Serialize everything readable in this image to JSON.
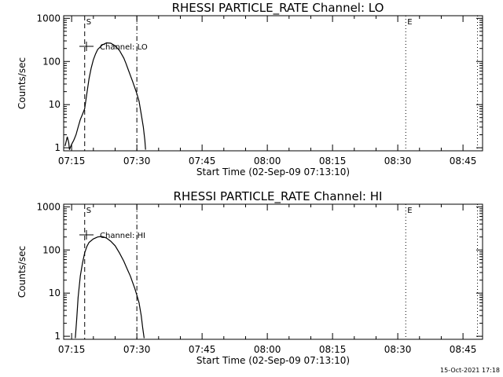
{
  "chart_data": [
    {
      "type": "line",
      "title": "RHESSI PARTICLE_RATE Channel: LO",
      "xlabel": "Start Time (02-Sep-09 07:13:10)",
      "ylabel": "Counts/sec",
      "y_scale": "log",
      "ylim": [
        0.85,
        1150
      ],
      "xlim": [
        "07:13:10",
        "08:49:30"
      ],
      "x_ticks": [
        "07:15",
        "07:30",
        "07:45",
        "08:00",
        "08:15",
        "08:30",
        "08:45"
      ],
      "y_ticks": [
        "1",
        "10",
        "100",
        "1000"
      ],
      "legend": {
        "position": "top-left",
        "entries": [
          "Channel: LO"
        ]
      },
      "markers": [
        {
          "label": "S",
          "time": "07:18:00",
          "style": "dashed"
        },
        {
          "label": "",
          "time": "07:30:00",
          "style": "dashdot"
        },
        {
          "label": "E",
          "time": "08:31:50",
          "style": "dotted"
        },
        {
          "label": "",
          "time": "08:48:20",
          "style": "dotted"
        }
      ],
      "series": [
        {
          "name": "Channel: LO",
          "x": [
            "07:13:30",
            "07:14:00",
            "07:14:20",
            "07:14:30",
            "07:14:40",
            "07:15:00",
            "07:15:30",
            "07:16:00",
            "07:16:30",
            "07:17:00",
            "07:17:30",
            "07:18:00",
            "07:18:30",
            "07:19:00",
            "07:19:30",
            "07:20:00",
            "07:20:30",
            "07:21:00",
            "07:22:00",
            "07:23:00",
            "07:24:00",
            "07:25:00",
            "07:26:00",
            "07:27:00",
            "07:27:30",
            "07:28:00",
            "07:28:30",
            "07:29:00",
            "07:29:30",
            "07:30:00",
            "07:30:30",
            "07:31:00",
            "07:31:30",
            "07:31:50",
            "07:32:00"
          ],
          "y": [
            1.1,
            1.8,
            1.3,
            0.9,
            1.0,
            1.2,
            1.5,
            2.0,
            3.0,
            4.5,
            6.0,
            8.0,
            18,
            40,
            70,
            110,
            150,
            190,
            240,
            270,
            265,
            230,
            180,
            120,
            90,
            65,
            48,
            35,
            25,
            18,
            12,
            6,
            3,
            1.5,
            0.9
          ]
        }
      ]
    },
    {
      "type": "line",
      "title": "RHESSI PARTICLE_RATE Channel: HI",
      "xlabel": "Start Time (02-Sep-09 07:13:10)",
      "ylabel": "Counts/sec",
      "y_scale": "log",
      "ylim": [
        0.85,
        1150
      ],
      "xlim": [
        "07:13:10",
        "08:49:30"
      ],
      "x_ticks": [
        "07:15",
        "07:30",
        "07:45",
        "08:00",
        "08:15",
        "08:30",
        "08:45"
      ],
      "y_ticks": [
        "1",
        "10",
        "100",
        "1000"
      ],
      "legend": {
        "position": "top-left",
        "entries": [
          "Channel: HI"
        ]
      },
      "markers": [
        {
          "label": "S",
          "time": "07:18:00",
          "style": "dashed"
        },
        {
          "label": "",
          "time": "07:30:00",
          "style": "dashdot"
        },
        {
          "label": "E",
          "time": "08:31:50",
          "style": "dotted"
        },
        {
          "label": "",
          "time": "08:48:20",
          "style": "dotted"
        }
      ],
      "series": [
        {
          "name": "Channel: HI",
          "x": [
            "07:15:50",
            "07:16:10",
            "07:16:30",
            "07:17:00",
            "07:17:30",
            "07:18:00",
            "07:18:30",
            "07:19:00",
            "07:20:00",
            "07:21:00",
            "07:22:00",
            "07:23:00",
            "07:24:00",
            "07:25:00",
            "07:26:00",
            "07:27:00",
            "07:27:30",
            "07:28:00",
            "07:28:30",
            "07:29:00",
            "07:29:30",
            "07:30:00",
            "07:30:30",
            "07:31:00",
            "07:31:20",
            "07:31:40"
          ],
          "y": [
            0.9,
            2.5,
            8,
            25,
            50,
            85,
            120,
            150,
            180,
            200,
            205,
            190,
            160,
            125,
            85,
            55,
            42,
            32,
            25,
            18,
            13,
            9,
            6,
            3,
            1.6,
            0.9
          ]
        }
      ]
    }
  ],
  "timestamp": "15-Oct-2021 17:18"
}
